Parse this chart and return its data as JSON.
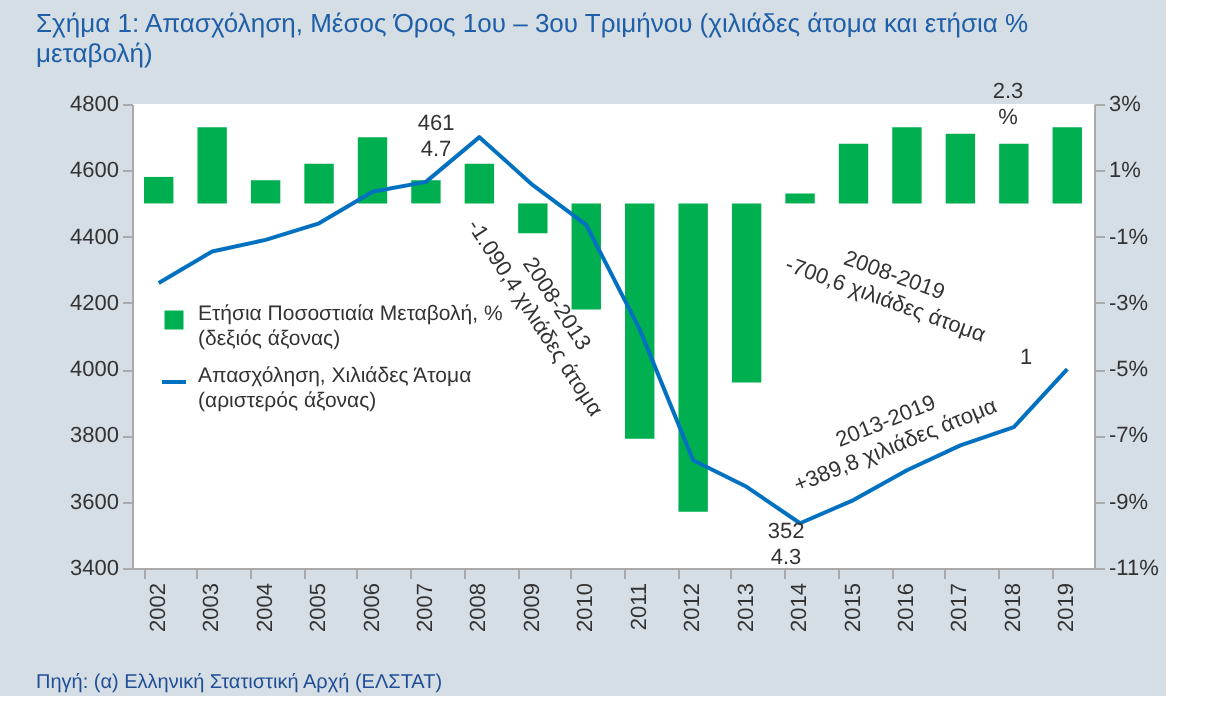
{
  "chart_data": {
    "type": "bar",
    "title": [
      "Σχήμα 1: Απασχόληση, Μέσος Όρος 1ου – 3ου Τριμήνου (χιλιάδες άτομα και ετήσια %",
      "μεταβολή)"
    ],
    "categories": [
      "2002",
      "2003",
      "2004",
      "2005",
      "2006",
      "2007",
      "2008",
      "2009",
      "2010",
      "2011",
      "2012",
      "2013",
      "2014",
      "2015",
      "2016",
      "2017",
      "2018",
      "2019"
    ],
    "series": [
      {
        "name": "Ετήσια Ποσοστιαία Μεταβολή, %\n(δεξιός άξονας)",
        "axis": "y2",
        "color": "#00b050",
        "values": [
          0.8,
          2.3,
          0.7,
          1.2,
          2.0,
          0.7,
          1.2,
          -0.9,
          -3.2,
          -7.1,
          -9.3,
          -5.4,
          0.3,
          1.8,
          2.3,
          2.1,
          1.8,
          2.3
        ]
      },
      {
        "name": "Απασχόληση, Χιλιάδες Άτομα\n(αριστερός άξονας)",
        "type": "line",
        "color": "#0070c0",
        "values": [
          4260,
          4355,
          4390,
          4440,
          4535,
          4565,
          4700,
          4555,
          4435,
          4120,
          3725,
          3645,
          3535,
          3605,
          3695,
          3770,
          3825,
          4000
        ]
      }
    ],
    "ylim": [
      3400,
      4800
    ],
    "yticks": [
      3400,
      3600,
      3800,
      4000,
      4200,
      4400,
      4600,
      4800
    ],
    "y2lim": [
      -11,
      3
    ],
    "y2ticks": [
      {
        "value": -11,
        "label": "-11%"
      },
      {
        "value": -9,
        "label": "-9%"
      },
      {
        "value": -7,
        "label": "-7%"
      },
      {
        "value": -5,
        "label": "-5%"
      },
      {
        "value": -3,
        "label": "-3%"
      },
      {
        "value": -1,
        "label": "-1%"
      },
      {
        "value": 1,
        "label": "1%"
      },
      {
        "value": 3,
        "label": "3%"
      }
    ],
    "grid": false,
    "legend": "bottom left",
    "annotations": [
      "461\n4.7",
      "2.3\n%",
      "352\n4.3",
      "1",
      "2008-2013\n-1.090,4 χιλιάδες άτομα",
      "2008-2019\n-700,6 χιλιάδες άτομα",
      "2013-2019\n+389,8 χιλιάδες άτομα",
      "Πηγή: (α) Ελληνική Στατιστική Αρχή (ΕΛΣΤΑΤ)"
    ]
  }
}
